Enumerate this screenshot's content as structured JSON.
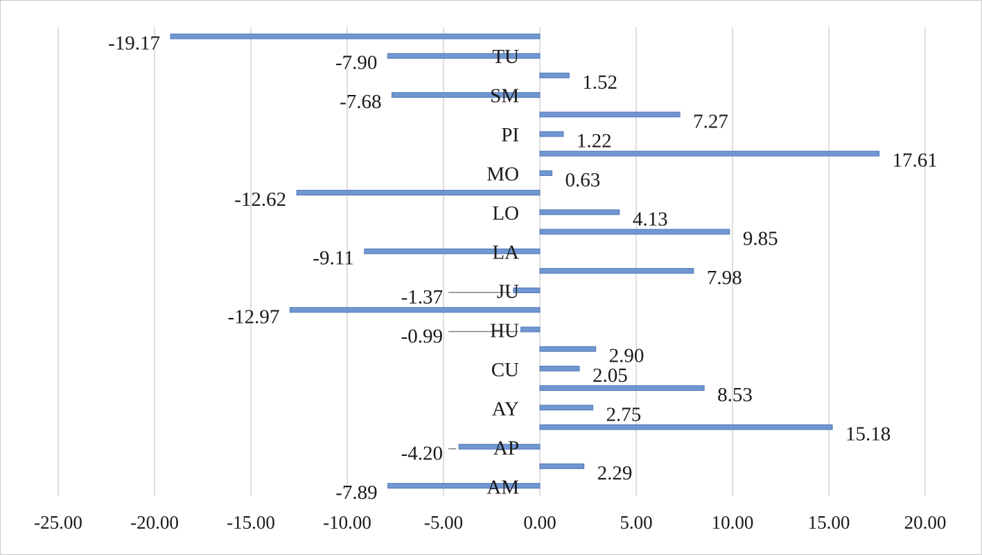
{
  "chart_data": {
    "type": "bar",
    "orientation": "horizontal",
    "title": "",
    "xlabel": "",
    "ylabel": "",
    "xlim": [
      -25,
      20
    ],
    "x_ticks": [
      -25,
      -20,
      -15,
      -10,
      -5,
      0,
      5,
      10,
      15,
      20
    ],
    "x_tick_labels": [
      "-25.00",
      "-20.00",
      "-15.00",
      "-10.00",
      "-5.00",
      "0.00",
      "5.00",
      "10.00",
      "15.00",
      "20.00"
    ],
    "grid": "vertical",
    "legend": "none",
    "bar_color": "#7097d2",
    "bar_edge_color": "#4f76b6",
    "category_labels": [
      "TU",
      "SM",
      "PI",
      "MO",
      "LO",
      "LA",
      "JU",
      "HU",
      "CU",
      "AY",
      "AP",
      "AM"
    ],
    "bars_top_to_bottom": [
      {
        "value": -19.17,
        "label": "-19.17"
      },
      {
        "value": -7.9,
        "label": "-7.90"
      },
      {
        "value": 1.52,
        "label": "1.52"
      },
      {
        "value": -7.68,
        "label": "-7.68"
      },
      {
        "value": 7.27,
        "label": "7.27"
      },
      {
        "value": 1.22,
        "label": "1.22"
      },
      {
        "value": 17.61,
        "label": "17.61"
      },
      {
        "value": 0.63,
        "label": "0.63"
      },
      {
        "value": -12.62,
        "label": "-12.62"
      },
      {
        "value": 4.13,
        "label": "4.13"
      },
      {
        "value": 9.85,
        "label": "9.85"
      },
      {
        "value": -9.11,
        "label": "-9.11"
      },
      {
        "value": 7.98,
        "label": "7.98"
      },
      {
        "value": -1.37,
        "label": "-1.37"
      },
      {
        "value": -12.97,
        "label": "-12.97"
      },
      {
        "value": -0.99,
        "label": "-0.99"
      },
      {
        "value": 2.9,
        "label": "2.90"
      },
      {
        "value": 2.05,
        "label": "2.05"
      },
      {
        "value": 8.53,
        "label": "8.53"
      },
      {
        "value": 2.75,
        "label": "2.75"
      },
      {
        "value": 15.18,
        "label": "15.18"
      },
      {
        "value": -4.2,
        "label": "-4.20"
      },
      {
        "value": 2.29,
        "label": "2.29"
      },
      {
        "value": -7.89,
        "label": "-7.89"
      }
    ]
  }
}
